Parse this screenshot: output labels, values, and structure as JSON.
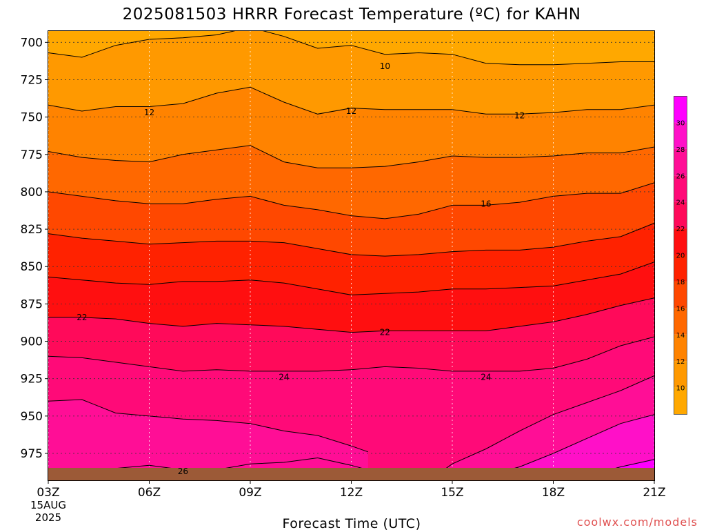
{
  "chart_data": {
    "type": "contour",
    "title": "2025081503 HRRR Forecast Temperature (ºC) for KAHN",
    "xlabel": "Forecast Time (UTC)",
    "ylabel": "",
    "credit": "coolwx.com/models",
    "x_ticks": [
      "03Z",
      "06Z",
      "09Z",
      "12Z",
      "15Z",
      "18Z",
      "21Z"
    ],
    "x_tick_hours": [
      0,
      3,
      6,
      9,
      12,
      15,
      18
    ],
    "x_start_date": [
      "15AUG",
      "2025"
    ],
    "x_range_hours": [
      0,
      18
    ],
    "y_ticks": [
      700,
      725,
      750,
      775,
      800,
      825,
      850,
      875,
      900,
      925,
      950,
      975
    ],
    "y_range_hpa": [
      692,
      993
    ],
    "y_scale": "pressure (inverted)",
    "grid": true,
    "colorbar_ticks": [
      10,
      12,
      14,
      16,
      18,
      20,
      22,
      24,
      26,
      28,
      30
    ],
    "contour_interval": 2,
    "contour_labels": [
      {
        "value": "10",
        "hour": 10,
        "p": 716
      },
      {
        "value": "12",
        "hour": 3,
        "p": 747
      },
      {
        "value": "12",
        "hour": 9,
        "p": 746
      },
      {
        "value": "12",
        "hour": 14,
        "p": 749
      },
      {
        "value": "16",
        "hour": 13,
        "p": 808
      },
      {
        "value": "22",
        "hour": 1,
        "p": 884
      },
      {
        "value": "22",
        "hour": 10,
        "p": 894
      },
      {
        "value": "24",
        "hour": 7,
        "p": 924
      },
      {
        "value": "24",
        "hour": 13,
        "p": 924
      },
      {
        "value": "26",
        "hour": 4,
        "p": 987
      }
    ],
    "isotherms": [
      {
        "t": 10,
        "pts": [
          [
            0,
            707
          ],
          [
            1,
            710
          ],
          [
            2,
            702
          ],
          [
            3,
            698
          ],
          [
            4,
            697
          ],
          [
            5,
            695
          ],
          [
            6,
            690
          ],
          [
            7,
            696
          ],
          [
            8,
            704
          ],
          [
            9,
            702
          ],
          [
            10,
            708
          ],
          [
            11,
            707
          ],
          [
            12,
            708
          ],
          [
            13,
            714
          ],
          [
            14,
            715
          ],
          [
            15,
            715
          ],
          [
            16,
            714
          ],
          [
            17,
            713
          ],
          [
            18,
            713
          ]
        ]
      },
      {
        "t": 12,
        "pts": [
          [
            0,
            742
          ],
          [
            1,
            746
          ],
          [
            2,
            743
          ],
          [
            3,
            743
          ],
          [
            4,
            741
          ],
          [
            5,
            734
          ],
          [
            6,
            730
          ],
          [
            7,
            740
          ],
          [
            8,
            748
          ],
          [
            9,
            744
          ],
          [
            10,
            745
          ],
          [
            11,
            745
          ],
          [
            12,
            745
          ],
          [
            13,
            748
          ],
          [
            14,
            748
          ],
          [
            15,
            747
          ],
          [
            16,
            745
          ],
          [
            17,
            745
          ],
          [
            18,
            742
          ]
        ]
      },
      {
        "t": 14,
        "pts": [
          [
            0,
            773
          ],
          [
            1,
            777
          ],
          [
            2,
            779
          ],
          [
            3,
            780
          ],
          [
            4,
            775
          ],
          [
            5,
            772
          ],
          [
            6,
            769
          ],
          [
            7,
            780
          ],
          [
            8,
            784
          ],
          [
            9,
            784
          ],
          [
            10,
            783
          ],
          [
            11,
            780
          ],
          [
            12,
            776
          ],
          [
            13,
            777
          ],
          [
            14,
            777
          ],
          [
            15,
            776
          ],
          [
            16,
            774
          ],
          [
            17,
            774
          ],
          [
            18,
            770
          ]
        ]
      },
      {
        "t": 16,
        "pts": [
          [
            0,
            800
          ],
          [
            1,
            803
          ],
          [
            2,
            806
          ],
          [
            3,
            808
          ],
          [
            4,
            808
          ],
          [
            5,
            805
          ],
          [
            6,
            803
          ],
          [
            7,
            809
          ],
          [
            8,
            812
          ],
          [
            9,
            816
          ],
          [
            10,
            818
          ],
          [
            11,
            815
          ],
          [
            12,
            809
          ],
          [
            13,
            809
          ],
          [
            14,
            807
          ],
          [
            15,
            803
          ],
          [
            16,
            801
          ],
          [
            17,
            801
          ],
          [
            18,
            794
          ]
        ]
      },
      {
        "t": 18,
        "pts": [
          [
            0,
            828
          ],
          [
            1,
            831
          ],
          [
            2,
            833
          ],
          [
            3,
            835
          ],
          [
            4,
            834
          ],
          [
            5,
            833
          ],
          [
            6,
            833
          ],
          [
            7,
            834
          ],
          [
            8,
            838
          ],
          [
            9,
            842
          ],
          [
            10,
            843
          ],
          [
            11,
            842
          ],
          [
            12,
            840
          ],
          [
            13,
            839
          ],
          [
            14,
            839
          ],
          [
            15,
            837
          ],
          [
            16,
            833
          ],
          [
            17,
            830
          ],
          [
            18,
            821
          ]
        ]
      },
      {
        "t": 20,
        "pts": [
          [
            0,
            857
          ],
          [
            1,
            859
          ],
          [
            2,
            861
          ],
          [
            3,
            862
          ],
          [
            4,
            860
          ],
          [
            5,
            860
          ],
          [
            6,
            859
          ],
          [
            7,
            861
          ],
          [
            8,
            865
          ],
          [
            9,
            869
          ],
          [
            10,
            868
          ],
          [
            11,
            867
          ],
          [
            12,
            865
          ],
          [
            13,
            865
          ],
          [
            14,
            864
          ],
          [
            15,
            863
          ],
          [
            16,
            859
          ],
          [
            17,
            855
          ],
          [
            18,
            847
          ]
        ]
      },
      {
        "t": 22,
        "pts": [
          [
            0,
            884
          ],
          [
            1,
            884
          ],
          [
            2,
            885
          ],
          [
            3,
            888
          ],
          [
            4,
            890
          ],
          [
            5,
            888
          ],
          [
            6,
            889
          ],
          [
            7,
            890
          ],
          [
            8,
            892
          ],
          [
            9,
            894
          ],
          [
            10,
            893
          ],
          [
            11,
            893
          ],
          [
            12,
            893
          ],
          [
            13,
            893
          ],
          [
            14,
            890
          ],
          [
            15,
            887
          ],
          [
            16,
            882
          ],
          [
            17,
            876
          ],
          [
            18,
            871
          ]
        ]
      },
      {
        "t": 24,
        "pts": [
          [
            0,
            910
          ],
          [
            1,
            911
          ],
          [
            2,
            914
          ],
          [
            3,
            917
          ],
          [
            4,
            920
          ],
          [
            5,
            919
          ],
          [
            6,
            920
          ],
          [
            7,
            920
          ],
          [
            8,
            920
          ],
          [
            9,
            919
          ],
          [
            10,
            917
          ],
          [
            11,
            918
          ],
          [
            12,
            920
          ],
          [
            13,
            920
          ],
          [
            14,
            920
          ],
          [
            15,
            918
          ],
          [
            16,
            912
          ],
          [
            17,
            903
          ],
          [
            18,
            897
          ]
        ]
      },
      {
        "t": 26,
        "pts": [
          [
            0,
            940
          ],
          [
            1,
            939
          ],
          [
            2,
            948
          ],
          [
            3,
            950
          ],
          [
            4,
            952
          ],
          [
            5,
            953
          ],
          [
            6,
            955
          ],
          [
            7,
            960
          ],
          [
            8,
            963
          ],
          [
            9,
            970
          ],
          [
            9.5,
            974
          ]
        ]
      },
      {
        "t": 26,
        "pts": [
          [
            11.5,
            990
          ],
          [
            12,
            982
          ],
          [
            13,
            972
          ],
          [
            14,
            960
          ],
          [
            15,
            949
          ],
          [
            16,
            941
          ],
          [
            17,
            933
          ],
          [
            18,
            923
          ]
        ]
      },
      {
        "t": 28,
        "pts": [
          [
            13,
            990
          ],
          [
            14,
            984
          ],
          [
            15,
            975
          ],
          [
            16,
            965
          ],
          [
            17,
            955
          ],
          [
            18,
            949
          ]
        ]
      },
      {
        "t": 30,
        "pts": [
          [
            16,
            990
          ],
          [
            17,
            984
          ],
          [
            18,
            979
          ]
        ]
      },
      {
        "t": 26,
        "pts": [
          [
            2,
            985
          ],
          [
            3,
            983
          ],
          [
            4,
            986
          ],
          [
            5,
            986
          ],
          [
            6,
            982
          ],
          [
            7,
            981
          ],
          [
            8,
            978
          ],
          [
            9,
            983
          ],
          [
            10,
            989
          ]
        ]
      }
    ]
  }
}
